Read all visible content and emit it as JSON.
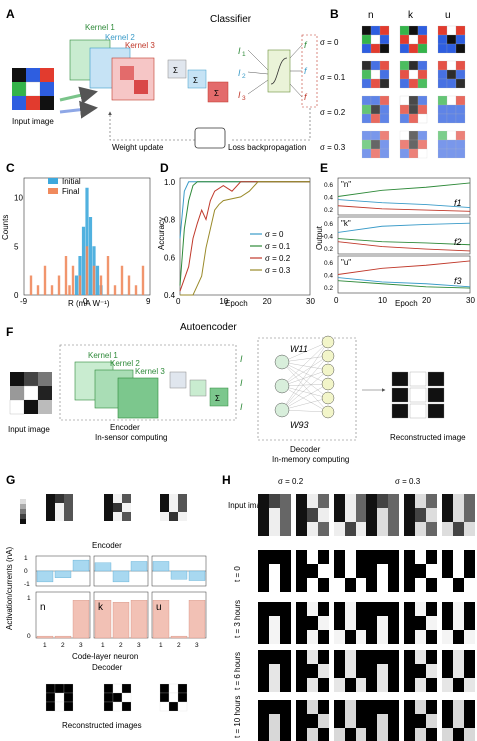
{
  "panels": {
    "A": {
      "label": "A",
      "title": "Classifier",
      "kernels": [
        "Kernel 1",
        "Kernel 2",
        "Kernel 3"
      ],
      "input_caption": "Input image",
      "weight_update": "Weight update",
      "loss_backprop": "Loss backpropagation",
      "sigma": "Σ",
      "currents": [
        "I",
        "I",
        "I"
      ],
      "current_subs": [
        "1",
        "2",
        "3"
      ],
      "outputs": [
        "f",
        "f",
        "f"
      ]
    },
    "B": {
      "label": "B",
      "columns": [
        "n",
        "k",
        "u"
      ],
      "rows": [
        "σ = 0",
        "σ = 0.1",
        "σ = 0.2",
        "σ = 0.3"
      ]
    },
    "C": {
      "label": "C",
      "legend": [
        "Initial",
        "Final"
      ],
      "ylabel": "Counts",
      "xlabel": "R (mA W⁻¹)"
    },
    "D": {
      "label": "D",
      "ylabel": "Accuracy",
      "xlabel": "Epoch",
      "legend": [
        "σ = 0",
        "σ = 0.1",
        "σ = 0.2",
        "σ = 0.3"
      ]
    },
    "E": {
      "label": "E",
      "ylabel": "Output",
      "xlabel": "Epoch",
      "sub_labels": [
        "\"n\"",
        "\"k\"",
        "\"u\""
      ],
      "funcs": [
        "f1",
        "f2",
        "f3"
      ]
    },
    "F": {
      "label": "F",
      "title": "Autoencoder",
      "kernels": [
        "Kernel 1",
        "Kernel 2",
        "Kernel 3"
      ],
      "input_caption": "Input image",
      "encoder": "Encoder",
      "encoder_sub": "In-sensor computing",
      "decoder": "Decoder",
      "decoder_sub": "In-memory computing",
      "w11": "W11",
      "w93": "W93",
      "reconstructed": "Reconstructed image"
    },
    "G": {
      "label": "G",
      "encoder": "Encoder",
      "decoder": "Decoder",
      "ylabel": "Activation/currents (nA)",
      "xlabel": "Code-layer neuron",
      "letters": [
        "n",
        "k",
        "u"
      ],
      "caption": "Reconstructed images"
    },
    "H": {
      "label": "H",
      "groups": [
        "σ = 0.2",
        "σ = 0.3"
      ],
      "input_label": "Input images",
      "rows": [
        "t = 0",
        "t = 3 hours",
        "t = 6 hours",
        "t = 10 hours"
      ]
    }
  },
  "chart_data": [
    {
      "type": "bar",
      "panel": "C",
      "ylabel": "Counts",
      "xlabel": "R (mA W⁻¹)",
      "x_ticks": [
        "-9",
        "0",
        "9"
      ],
      "y_ticks": [
        "0",
        "5",
        "10"
      ],
      "xlim": [
        -9,
        9
      ],
      "ylim": [
        0,
        12
      ],
      "series": [
        {
          "name": "Initial",
          "color": "#3ea8dc",
          "x": [
            -1.5,
            -1,
            -0.5,
            0,
            0.5,
            1,
            1.5,
            2
          ],
          "values": [
            2,
            4,
            7,
            11,
            8,
            5,
            3,
            1
          ]
        },
        {
          "name": "Final",
          "color": "#f08a5d",
          "x": [
            -8,
            -7,
            -6,
            -5,
            -4,
            -3,
            -2.5,
            -2,
            -1,
            0,
            1,
            2,
            3,
            4,
            5,
            6,
            7,
            8
          ],
          "values": [
            2,
            1,
            3,
            1,
            2,
            4,
            1,
            3,
            2,
            5,
            3,
            2,
            4,
            1,
            3,
            2,
            1,
            3
          ]
        }
      ]
    },
    {
      "type": "line",
      "panel": "D",
      "ylabel": "Accuracy",
      "xlabel": "Epoch",
      "x_ticks": [
        "0",
        "10",
        "20",
        "30"
      ],
      "y_ticks": [
        "0.4",
        "0.6",
        "0.8",
        "1.0"
      ],
      "xlim": [
        0,
        30
      ],
      "ylim": [
        0.4,
        1.02
      ],
      "series": [
        {
          "name": "σ = 0",
          "color": "#3a9bc8",
          "x": [
            0,
            1,
            2,
            3,
            30
          ],
          "values": [
            0.7,
            0.95,
            1,
            1,
            1
          ]
        },
        {
          "name": "σ = 0.1",
          "color": "#2f8a3a",
          "x": [
            0,
            1,
            2,
            3,
            4,
            5,
            30
          ],
          "values": [
            0.45,
            0.75,
            0.9,
            0.98,
            1,
            1,
            1
          ]
        },
        {
          "name": "σ = 0.2",
          "color": "#c0392b",
          "x": [
            0,
            2,
            3,
            4,
            5,
            6,
            7,
            8,
            10,
            12,
            14,
            16,
            30
          ],
          "values": [
            0.42,
            0.55,
            0.7,
            0.78,
            0.85,
            0.8,
            0.9,
            0.95,
            0.98,
            0.95,
            1,
            1,
            1
          ]
        },
        {
          "name": "σ = 0.3",
          "color": "#9a8a2a",
          "x": [
            0,
            3,
            4,
            5,
            6,
            7,
            8,
            9,
            10,
            14,
            16,
            18,
            20,
            30
          ],
          "values": [
            0.4,
            0.4,
            0.45,
            0.5,
            0.65,
            0.75,
            0.85,
            0.88,
            0.9,
            0.92,
            0.95,
            1,
            1,
            1
          ]
        }
      ]
    },
    {
      "type": "line",
      "panel": "E",
      "ylabel": "Output",
      "xlabel": "Epoch",
      "x_ticks": [
        "0",
        "10",
        "20",
        "30"
      ],
      "y_ticks": [
        "0.2",
        "0.4",
        "0.6"
      ],
      "xlim": [
        0,
        30
      ],
      "ylim": [
        0.1,
        0.7
      ],
      "subplots": [
        {
          "label": "\"n\"",
          "highlight": "f1",
          "series": [
            {
              "name": "f1",
              "color": "#2f8a3a",
              "x": [
                0,
                10,
                20,
                30
              ],
              "values": [
                0.4,
                0.5,
                0.55,
                0.62
              ]
            },
            {
              "name": "f2",
              "color": "#3a9bc8",
              "x": [
                0,
                10,
                20,
                30
              ],
              "values": [
                0.35,
                0.3,
                0.27,
                0.22
              ]
            },
            {
              "name": "f3",
              "color": "#c0392b",
              "x": [
                0,
                10,
                20,
                30
              ],
              "values": [
                0.25,
                0.2,
                0.18,
                0.16
              ]
            }
          ]
        },
        {
          "label": "\"k\"",
          "highlight": "f2",
          "series": [
            {
              "name": "f1",
              "color": "#2f8a3a",
              "x": [
                0,
                10,
                20,
                30
              ],
              "values": [
                0.35,
                0.3,
                0.28,
                0.25
              ]
            },
            {
              "name": "f2",
              "color": "#3a9bc8",
              "x": [
                0,
                10,
                20,
                30
              ],
              "values": [
                0.45,
                0.55,
                0.58,
                0.6
              ]
            },
            {
              "name": "f3",
              "color": "#c0392b",
              "x": [
                0,
                10,
                20,
                30
              ],
              "values": [
                0.3,
                0.22,
                0.18,
                0.15
              ]
            }
          ]
        },
        {
          "label": "\"u\"",
          "highlight": "f3",
          "series": [
            {
              "name": "f1",
              "color": "#2f8a3a",
              "x": [
                0,
                10,
                20,
                30
              ],
              "values": [
                0.3,
                0.25,
                0.2,
                0.18
              ]
            },
            {
              "name": "f2",
              "color": "#3a9bc8",
              "x": [
                0,
                10,
                20,
                30
              ],
              "values": [
                0.35,
                0.28,
                0.25,
                0.2
              ]
            },
            {
              "name": "f3",
              "color": "#c0392b",
              "x": [
                0,
                10,
                20,
                30
              ],
              "values": [
                0.4,
                0.5,
                0.55,
                0.62
              ]
            }
          ]
        }
      ]
    },
    {
      "type": "bar",
      "panel": "G",
      "ylabel": "Activation/currents (nA)",
      "xlabel": "Code-layer neuron",
      "categories": [
        "1",
        "2",
        "3"
      ],
      "top_ticks": [
        "-1",
        "0",
        "1"
      ],
      "bottom_ticks": [
        "0",
        "1"
      ],
      "letters": [
        "n",
        "k",
        "u"
      ],
      "top_values": [
        [
          -0.8,
          -0.5,
          0.8
        ],
        [
          0.6,
          -0.8,
          0.7
        ],
        [
          0.7,
          -0.6,
          -0.7
        ]
      ],
      "bottom_values": [
        [
          0.05,
          0.05,
          1.0
        ],
        [
          1.0,
          0.95,
          1.0
        ],
        [
          1.0,
          0.05,
          1.0
        ]
      ]
    }
  ]
}
